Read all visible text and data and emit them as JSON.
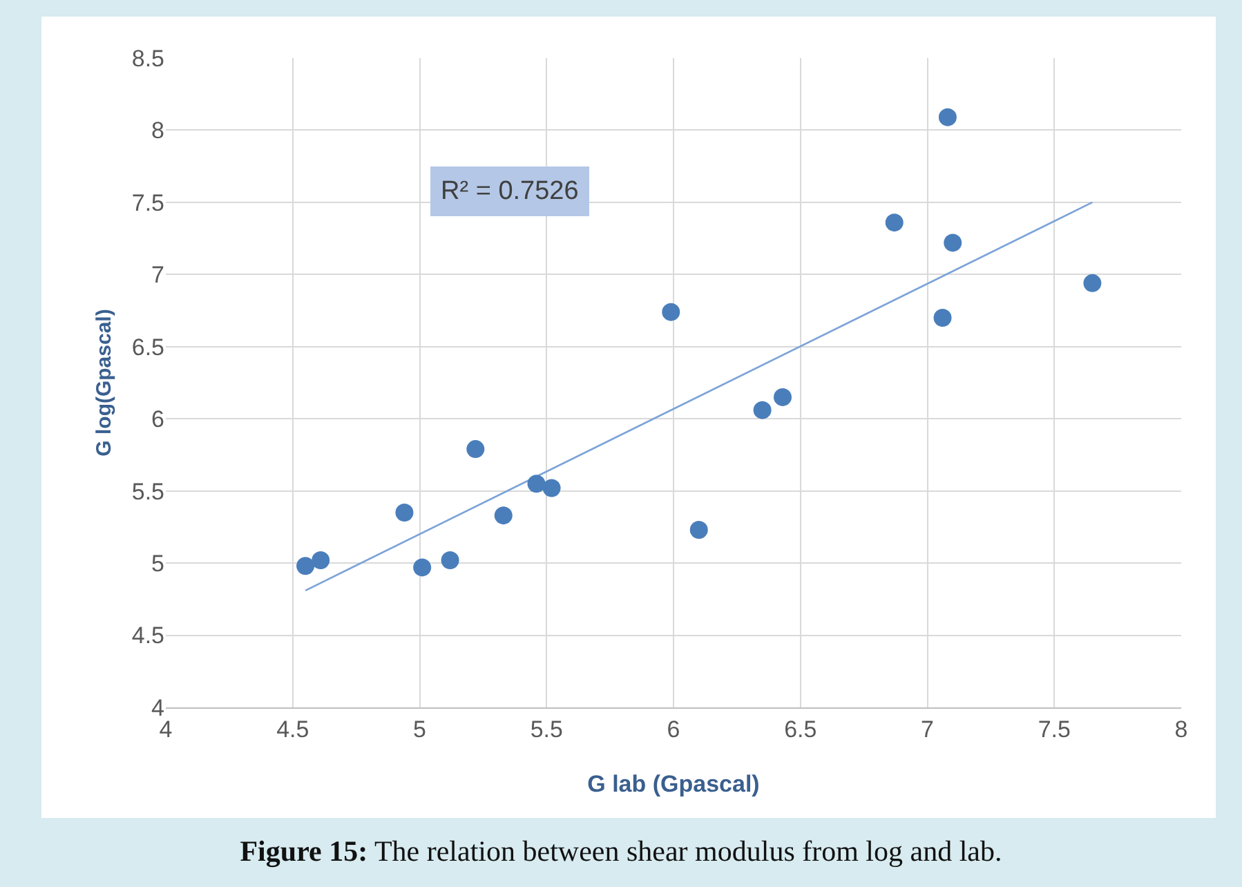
{
  "chart_data": {
    "type": "scatter",
    "title": "Figure 15: The relation between shear modulus from log and lab.",
    "xlabel": "G lab (Gpascal)",
    "ylabel": "G log(Gpascal)",
    "annotations": [
      "R² = 0.7526"
    ],
    "series": [
      {
        "color": "#4a7ebb",
        "x": [
          4.55,
          4.61,
          4.94,
          5.01,
          5.12,
          5.22,
          5.33,
          5.46,
          5.52,
          5.99,
          6.1,
          6.35,
          6.43,
          6.87,
          7.06,
          7.08,
          7.1,
          7.65
        ],
        "values": [
          4.98,
          5.02,
          5.35,
          4.97,
          5.02,
          5.79,
          5.33,
          5.55,
          5.52,
          6.74,
          5.23,
          6.06,
          6.15,
          7.36,
          6.7,
          8.09,
          7.22,
          6.94
        ]
      },
      {
        "type": "line",
        "marker": "none",
        "color": "#7ba3d8",
        "x": [
          4.55,
          7.65
        ],
        "values": [
          4.81,
          7.5
        ]
      }
    ],
    "xlim": [
      4,
      8
    ],
    "xticks": [
      4,
      4.5,
      5,
      5.5,
      6,
      6.5,
      7,
      7.5,
      8
    ],
    "ylim": [
      4,
      8.5
    ],
    "yticks": [
      4,
      4.5,
      5,
      5.5,
      6,
      6.5,
      7,
      7.5,
      8,
      8.5
    ],
    "grid": true,
    "marker": "circle"
  }
}
